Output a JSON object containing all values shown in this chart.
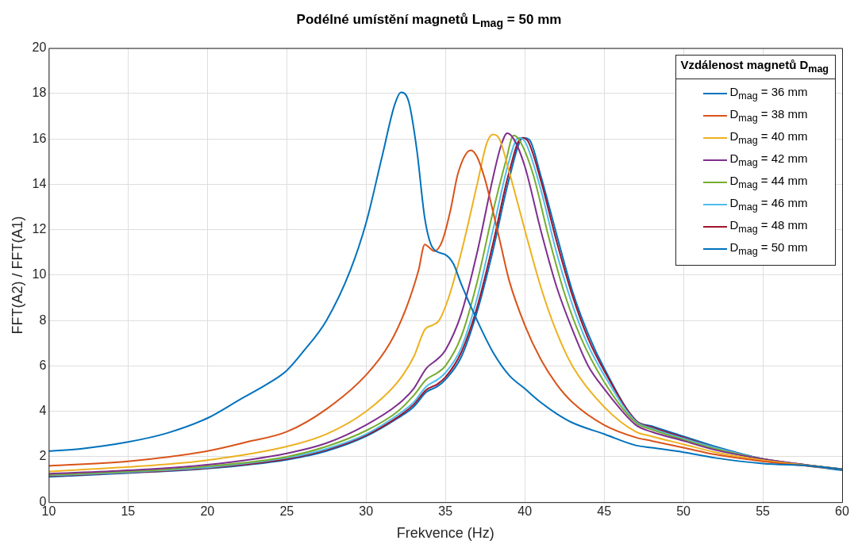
{
  "chart_data": {
    "type": "line",
    "title": "Podélné umístění magnetů L$_{mag}$ = 50 mm",
    "xlabel": "Frekvence (Hz)",
    "ylabel": "FFT(A2) / FFT(A1)",
    "legend_title": "Vzdálenost magnetů D$_{mag}$",
    "legend": "top right",
    "grid": true,
    "marker": "none",
    "line_style": "solid",
    "xlim": [
      10,
      60
    ],
    "xticks": [
      10,
      15,
      20,
      25,
      30,
      35,
      40,
      45,
      50,
      55,
      60
    ],
    "ylim": [
      0,
      20
    ],
    "yticks": [
      0,
      2,
      4,
      6,
      8,
      10,
      12,
      14,
      16,
      18,
      20
    ],
    "series": [
      {
        "name": "D$_{mag}$ = 36 mm",
        "color": "#0072bd",
        "x": [
          10,
          12,
          15,
          17.5,
          20,
          22,
          24,
          25,
          26,
          27.5,
          29,
          30,
          31,
          31.8,
          32.2,
          32.7,
          33.2,
          33.7,
          34.2,
          35,
          35.5,
          36,
          37,
          38,
          39,
          40,
          41,
          42,
          43,
          45,
          47,
          48,
          50,
          52,
          55,
          58,
          60
        ],
        "values": [
          2.25,
          2.35,
          2.65,
          3.05,
          3.7,
          4.5,
          5.3,
          5.8,
          6.6,
          8.0,
          10.2,
          12.3,
          15.2,
          17.5,
          18.05,
          17.6,
          15.5,
          12.5,
          11.2,
          10.9,
          10.5,
          9.6,
          8.0,
          6.6,
          5.6,
          5.0,
          4.4,
          3.9,
          3.5,
          3.0,
          2.5,
          2.4,
          2.2,
          1.95,
          1.7,
          1.6,
          1.45
        ]
      },
      {
        "name": "D$_{mag}$ = 38 mm",
        "color": "#d95319",
        "x": [
          10,
          15,
          20,
          22.5,
          25,
          27.5,
          30,
          31.5,
          32.5,
          33.3,
          33.7,
          34,
          34.3,
          34.8,
          35.3,
          35.8,
          36.6,
          37,
          37.5,
          38,
          38.5,
          39,
          40,
          41,
          42,
          43,
          45,
          47,
          48,
          50,
          52,
          55,
          60
        ],
        "values": [
          1.6,
          1.8,
          2.25,
          2.65,
          3.1,
          4.1,
          5.6,
          7.0,
          8.5,
          10.2,
          11.35,
          11.2,
          11.05,
          11.5,
          12.8,
          14.5,
          15.5,
          15.2,
          14.2,
          12.8,
          11.3,
          9.8,
          7.8,
          6.3,
          5.2,
          4.4,
          3.4,
          2.85,
          2.7,
          2.4,
          2.1,
          1.8,
          1.45
        ]
      },
      {
        "name": "D$_{mag}$ = 40 mm",
        "color": "#edb120",
        "x": [
          10,
          15,
          20,
          25,
          27.5,
          30,
          32,
          33,
          33.7,
          34.2,
          34.6,
          35.2,
          36,
          37,
          37.6,
          38,
          38.4,
          39,
          40,
          41,
          42,
          43,
          45,
          47,
          48,
          50,
          52,
          55,
          60
        ],
        "values": [
          1.35,
          1.55,
          1.85,
          2.45,
          3.0,
          4.0,
          5.3,
          6.4,
          7.6,
          7.8,
          8.0,
          9.0,
          11.0,
          14.0,
          15.8,
          16.2,
          16.0,
          14.6,
          12.0,
          9.5,
          7.5,
          6.0,
          4.2,
          3.1,
          2.9,
          2.55,
          2.2,
          1.85,
          1.45
        ]
      },
      {
        "name": "D$_{mag}$ = 42 mm",
        "color": "#7e2f8e",
        "x": [
          10,
          15,
          20,
          25,
          27.5,
          30,
          32,
          33,
          33.8,
          34.5,
          35,
          36,
          37,
          38,
          38.5,
          38.9,
          39.3,
          40,
          41,
          42,
          43,
          44,
          45,
          47,
          48,
          50,
          52,
          55,
          60
        ],
        "values": [
          1.25,
          1.4,
          1.65,
          2.15,
          2.6,
          3.4,
          4.3,
          5.0,
          5.9,
          6.3,
          6.7,
          8.3,
          11.0,
          14.3,
          15.7,
          16.25,
          16.0,
          14.8,
          12.0,
          9.5,
          7.6,
          6.0,
          5.0,
          3.4,
          3.1,
          2.7,
          2.3,
          1.9,
          1.45
        ]
      },
      {
        "name": "D$_{mag}$ = 44 mm",
        "color": "#77ac30",
        "x": [
          10,
          15,
          20,
          25,
          27.5,
          30,
          32,
          33,
          33.8,
          34.5,
          35,
          36,
          37,
          38,
          38.8,
          39.3,
          39.7,
          40.5,
          41.5,
          42.5,
          43.5,
          45,
          47,
          48,
          50,
          52,
          55,
          60
        ],
        "values": [
          1.2,
          1.35,
          1.58,
          2.0,
          2.45,
          3.15,
          4.0,
          4.7,
          5.4,
          5.7,
          6.0,
          7.3,
          9.7,
          12.8,
          15.0,
          16.15,
          15.9,
          14.5,
          11.7,
          9.2,
          7.3,
          5.3,
          3.5,
          3.2,
          2.75,
          2.35,
          1.9,
          1.45
        ]
      },
      {
        "name": "D$_{mag}$ = 46 mm",
        "color": "#4dbeee",
        "x": [
          10,
          15,
          20,
          25,
          27.5,
          30,
          32,
          33,
          33.8,
          34.5,
          35,
          36,
          37,
          38,
          39,
          39.6,
          40,
          41,
          42,
          43,
          44,
          45,
          47,
          48,
          50,
          52,
          55,
          60
        ],
        "values": [
          1.18,
          1.32,
          1.53,
          1.95,
          2.35,
          3.0,
          3.85,
          4.4,
          5.1,
          5.4,
          5.7,
          6.8,
          9.0,
          12.0,
          15.0,
          16.05,
          15.9,
          13.8,
          11.0,
          8.7,
          6.9,
          5.6,
          3.55,
          3.25,
          2.8,
          2.4,
          1.9,
          1.45
        ]
      },
      {
        "name": "D$_{mag}$ = 48 mm",
        "color": "#a2142f",
        "x": [
          10,
          15,
          20,
          25,
          27.5,
          30,
          32,
          33,
          33.8,
          34.5,
          35,
          36,
          37,
          38,
          39,
          39.8,
          40.2,
          41,
          42,
          43,
          44,
          45,
          47,
          48,
          50,
          52,
          55,
          60
        ],
        "values": [
          1.15,
          1.3,
          1.5,
          1.9,
          2.3,
          2.95,
          3.75,
          4.3,
          4.95,
          5.2,
          5.5,
          6.6,
          8.6,
          11.4,
          14.5,
          16.05,
          15.9,
          14.2,
          11.5,
          9.1,
          7.2,
          5.8,
          3.6,
          3.3,
          2.85,
          2.4,
          1.9,
          1.45
        ]
      },
      {
        "name": "D$_{mag}$ = 50 mm",
        "color": "#0072bd",
        "x": [
          10,
          15,
          20,
          25,
          27.5,
          30,
          32,
          33,
          33.8,
          34.5,
          35,
          36,
          37,
          38,
          39,
          39.9,
          40.3,
          41,
          42,
          43,
          44,
          45,
          47,
          48,
          50,
          52,
          55,
          60
        ],
        "values": [
          1.12,
          1.28,
          1.48,
          1.87,
          2.25,
          2.9,
          3.7,
          4.2,
          4.85,
          5.1,
          5.4,
          6.4,
          8.4,
          11.1,
          14.2,
          16.05,
          15.95,
          14.4,
          11.8,
          9.3,
          7.4,
          5.9,
          3.6,
          3.35,
          2.9,
          2.45,
          1.9,
          1.4
        ]
      }
    ]
  }
}
